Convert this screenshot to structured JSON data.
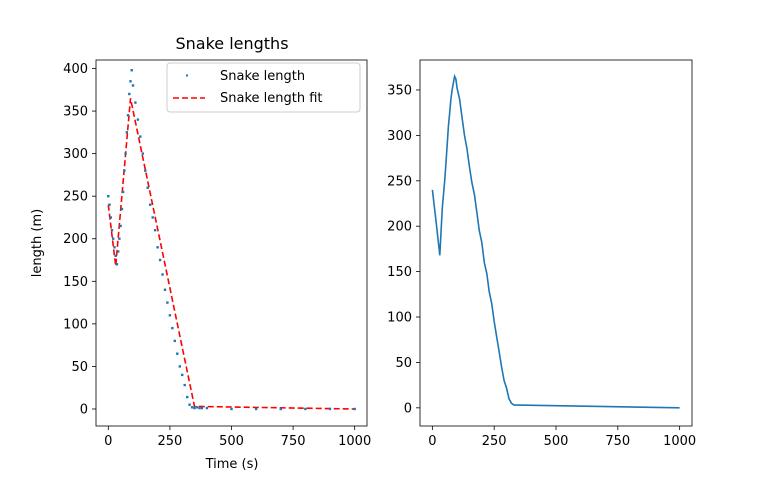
{
  "chart_data": [
    {
      "type": "scatter",
      "title": "Snake lengths",
      "xlabel": "Time (s)",
      "ylabel": "length (m)",
      "xlim": [
        -50,
        1050
      ],
      "ylim": [
        -20,
        410
      ],
      "xticks": [
        0,
        250,
        500,
        750,
        1000
      ],
      "yticks": [
        0,
        50,
        100,
        150,
        200,
        250,
        300,
        350,
        400
      ],
      "legend": {
        "location": "top-right",
        "entries": [
          "Snake length",
          "Snake length fit"
        ]
      },
      "series": [
        {
          "name": "Snake length",
          "style": "dotted-markers",
          "color": "#1f77b4",
          "x": [
            0,
            5,
            10,
            15,
            20,
            25,
            30,
            35,
            40,
            45,
            50,
            55,
            60,
            65,
            70,
            75,
            80,
            85,
            90,
            95,
            100,
            110,
            120,
            130,
            140,
            150,
            160,
            170,
            180,
            190,
            200,
            210,
            220,
            230,
            240,
            250,
            260,
            270,
            280,
            290,
            300,
            310,
            320,
            330,
            340,
            350,
            360,
            370,
            380,
            400,
            500,
            600,
            700,
            800,
            900,
            1000
          ],
          "y": [
            250,
            240,
            225,
            210,
            200,
            190,
            180,
            170,
            185,
            200,
            215,
            235,
            255,
            280,
            300,
            325,
            345,
            370,
            385,
            398,
            380,
            360,
            340,
            320,
            300,
            280,
            260,
            240,
            225,
            210,
            190,
            175,
            158,
            140,
            125,
            110,
            95,
            80,
            65,
            50,
            40,
            28,
            14,
            5,
            2,
            1,
            2,
            1,
            1,
            1,
            0,
            0,
            0,
            0,
            0,
            0
          ]
        },
        {
          "name": "Snake length fit",
          "style": "dashed-line",
          "color": "#ff0000",
          "x": [
            0,
            30,
            90,
            350,
            1000
          ],
          "y": [
            240,
            168,
            365,
            3,
            0
          ]
        }
      ]
    },
    {
      "type": "line",
      "title": "",
      "xlabel": "",
      "ylabel": "",
      "xlim": [
        -50,
        1050
      ],
      "ylim": [
        -20,
        383
      ],
      "xticks": [
        0,
        250,
        500,
        750,
        1000
      ],
      "yticks": [
        0,
        50,
        100,
        150,
        200,
        250,
        300,
        350
      ],
      "series": [
        {
          "color": "#1f77b4",
          "x": [
            0,
            15,
            30,
            40,
            50,
            55,
            60,
            65,
            70,
            75,
            80,
            85,
            90,
            95,
            100,
            110,
            120,
            130,
            140,
            150,
            160,
            170,
            180,
            190,
            200,
            210,
            220,
            230,
            240,
            250,
            260,
            270,
            280,
            290,
            300,
            310,
            320,
            330,
            340,
            350,
            1000
          ],
          "y": [
            240,
            205,
            168,
            220,
            250,
            270,
            290,
            310,
            325,
            340,
            350,
            358,
            365,
            362,
            352,
            340,
            320,
            300,
            285,
            265,
            248,
            235,
            215,
            195,
            182,
            160,
            148,
            128,
            115,
            95,
            78,
            62,
            45,
            30,
            22,
            10,
            5,
            3,
            3,
            3,
            0
          ]
        }
      ]
    }
  ]
}
